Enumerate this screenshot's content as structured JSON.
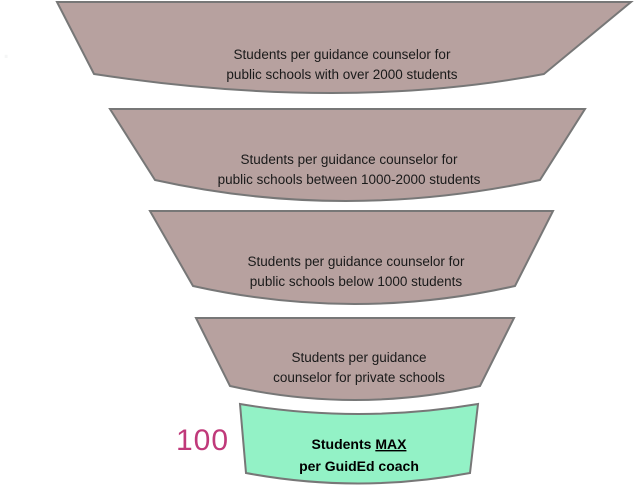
{
  "colors": {
    "tier_fill": "#b7a19f",
    "tier_stroke": "#777777",
    "highlight_fill": "#93f2c6",
    "highlight_stroke": "#777777",
    "accent_number": "#c0397a"
  },
  "funnel": {
    "tiers": [
      {
        "line1": "Students per guidance counselor for",
        "line2": "public schools with over 2000 students",
        "number": ""
      },
      {
        "line1": "Students per guidance counselor for",
        "line2": "public schools between 1000-2000 students",
        "number": ""
      },
      {
        "line1": "Students per guidance counselor for",
        "line2": "public schools below 1000 students",
        "number": ""
      },
      {
        "line1": "Students per guidance",
        "line2": "counselor for private schools",
        "number": ""
      }
    ],
    "highlight": {
      "line1_prefix": "Students ",
      "line1_emphasis": "MAX",
      "line2": "per GuidEd coach",
      "number": "100"
    }
  }
}
